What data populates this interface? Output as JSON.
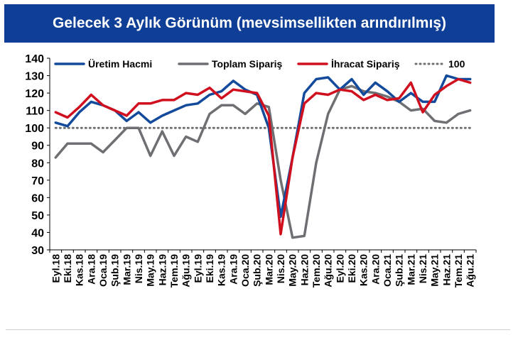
{
  "title": "Gelecek 3 Aylık Görünüm (mevsimsellikten arındırılmış)",
  "colors": {
    "title_bg": "#0f3e96",
    "title_text": "#ffffff"
  },
  "chart_data": {
    "type": "line",
    "title": "",
    "xlabel": "",
    "ylabel": "",
    "ylim": [
      30,
      140
    ],
    "yticks": [
      30,
      40,
      50,
      60,
      70,
      80,
      90,
      100,
      110,
      120,
      130,
      140
    ],
    "grid": false,
    "legend_position": "top",
    "x_tick_labels": [
      "Eyl.18",
      "Eki.18",
      "Kas.18",
      "Ara.18",
      "Oca.19",
      "Şub.19",
      "Mar.19",
      "Nis.19",
      "May.19",
      "Haz.19",
      "Tem.19",
      "Ağu.19",
      "Eyl.19",
      "Eki.19",
      "Kas.19",
      "Ara.19",
      "Oca.20",
      "Şub.20",
      "Mar.20",
      "Nis.20",
      "May.20",
      "Haz.20",
      "Tem.20",
      "Ağu.20",
      "Eyl.20",
      "Eki.20",
      "Kas.20",
      "Ara.20",
      "Oca.21",
      "Şub.21",
      "Mar.21",
      "Nis.21",
      "May.21",
      "Haz.21",
      "Tem.21",
      "Ağu.21"
    ],
    "categories": [
      "Eyl.18",
      "Eki.18",
      "Kas.18",
      "Ara.18",
      "Oca.19",
      "Şub.19",
      "Mar.19",
      "Nis.19",
      "May.19",
      "Haz.19",
      "Tem.19",
      "Ağu.19",
      "Eyl.19",
      "Eki.19",
      "Kas.19",
      "Ara.19",
      "Oca.20",
      "Şub.20",
      "Mar.20",
      "Nis.20",
      "May.20",
      "Haz.20",
      "Tem.20",
      "Ağu.20",
      "Eyl.20",
      "Eki.20",
      "Kas.20",
      "Ara.20",
      "Oca.21",
      "Şub.21",
      "Mar.21",
      "Nis.21",
      "May.21",
      "Haz.21",
      "Tem.21",
      "Ağu.21"
    ],
    "series": [
      {
        "name": "Üretim Hacmi",
        "color": "#134a9c",
        "values": [
          103,
          101,
          109,
          115,
          113,
          110,
          104,
          109,
          103,
          107,
          110,
          113,
          114,
          119,
          121,
          127,
          122,
          119,
          100,
          49,
          83,
          120,
          128,
          129,
          122,
          128,
          119,
          126,
          121,
          115,
          120,
          115,
          115,
          130,
          128,
          128
        ]
      },
      {
        "name": "Toplam Sipariş",
        "color": "#6d6f72",
        "values": [
          83,
          91,
          91,
          91,
          86,
          93,
          100,
          100,
          84,
          98,
          84,
          95,
          92,
          108,
          113,
          113,
          108,
          114,
          112,
          70,
          37,
          38,
          80,
          108,
          122,
          124,
          121,
          120,
          118,
          115,
          110,
          111,
          104,
          103,
          108,
          110
        ]
      },
      {
        "name": "İhracat Sipariş",
        "color": "#d0101f",
        "values": [
          109,
          106,
          112,
          119,
          113,
          110,
          107,
          114,
          114,
          116,
          116,
          120,
          119,
          123,
          117,
          122,
          121,
          120,
          107,
          39,
          83,
          114,
          120,
          119,
          122,
          121,
          116,
          119,
          116,
          117,
          126,
          109,
          119,
          124,
          128,
          126
        ]
      },
      {
        "name": "100",
        "color": "#6d6f72",
        "dashed": true,
        "values": [
          100,
          100,
          100,
          100,
          100,
          100,
          100,
          100,
          100,
          100,
          100,
          100,
          100,
          100,
          100,
          100,
          100,
          100,
          100,
          100,
          100,
          100,
          100,
          100,
          100,
          100,
          100,
          100,
          100,
          100,
          100,
          100,
          100,
          100,
          100,
          100
        ]
      }
    ]
  }
}
